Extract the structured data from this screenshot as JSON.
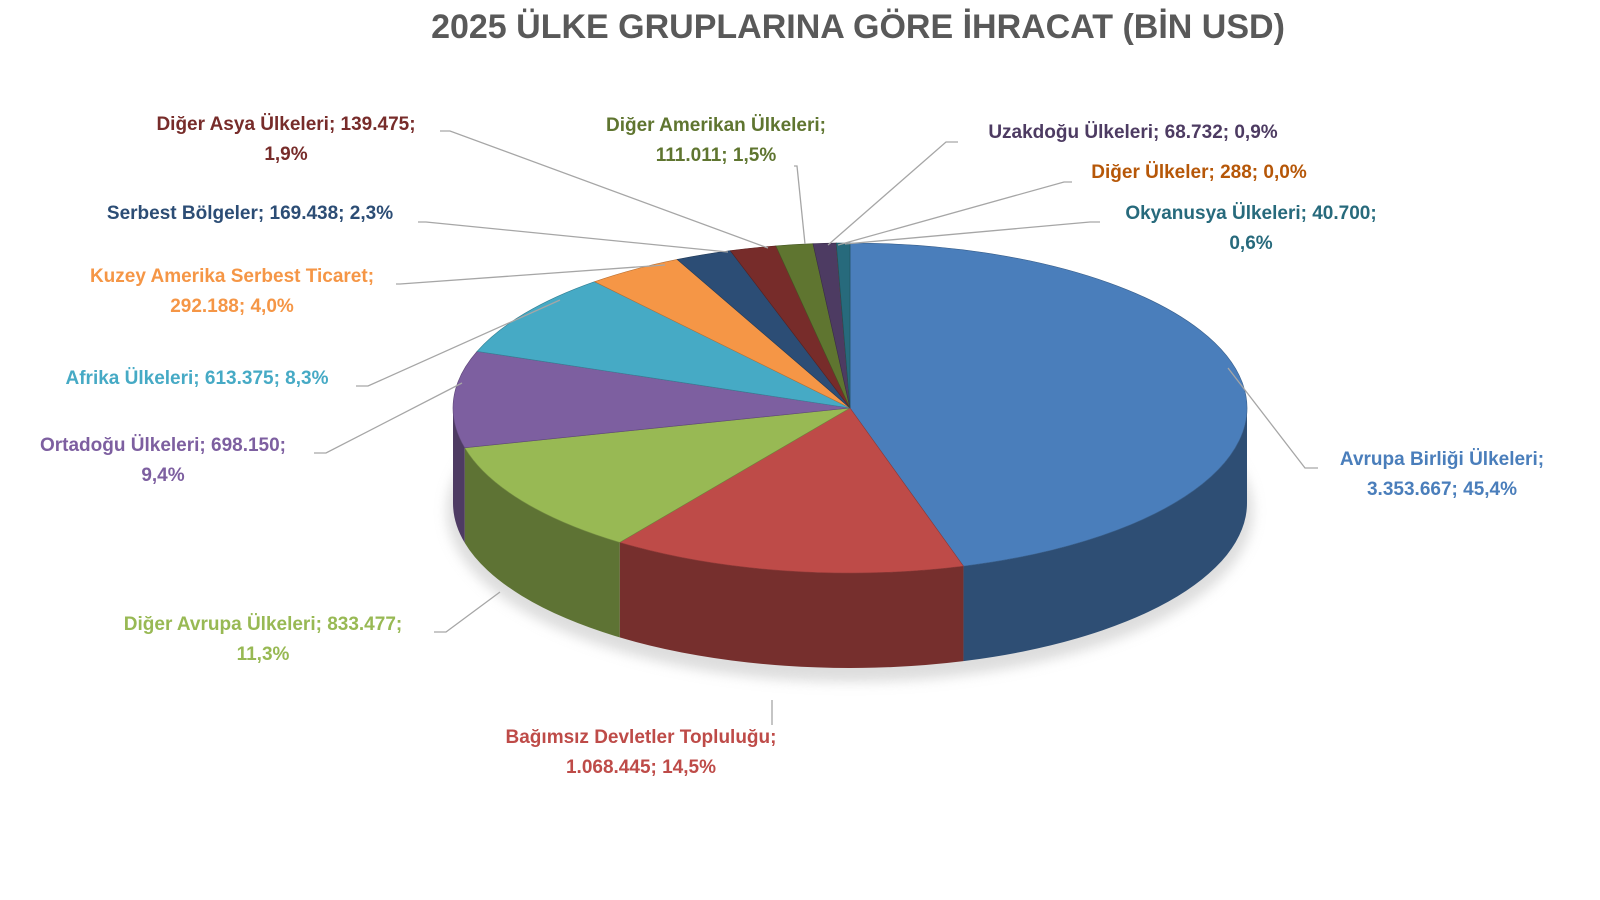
{
  "chart_data": {
    "type": "pie",
    "title": "2025 ÜLKE GRUPLARINA GÖRE İHRACAT (BİN USD)",
    "style": "3d-pie",
    "legend": "none",
    "start_angle": "top, clockwise",
    "slices": [
      {
        "name": "Avrupa Birliği Ülkeleri",
        "value": 3353667,
        "percent": 45.4,
        "color": "#4a7ebb",
        "label_color": "#4a7ebb",
        "lines": [
          "Avrupa Birliği Ülkeleri;",
          "3.353.667; 45,4%"
        ]
      },
      {
        "name": "Bağımsız Devletler Topluluğu",
        "value": 1068445,
        "percent": 14.5,
        "color": "#be4b48",
        "label_color": "#be4b48",
        "lines": [
          "Bağımsız Devletler Topluluğu;",
          "1.068.445; 14,5%"
        ]
      },
      {
        "name": "Diğer Avrupa Ülkeleri",
        "value": 833477,
        "percent": 11.3,
        "color": "#98b954",
        "label_color": "#98b954",
        "lines": [
          "Diğer Avrupa Ülkeleri; 833.477;",
          "11,3%"
        ]
      },
      {
        "name": "Ortadoğu Ülkeleri",
        "value": 698150,
        "percent": 9.4,
        "color": "#7d5fa0",
        "label_color": "#7d5fa0",
        "lines": [
          "Ortadoğu Ülkeleri; 698.150;",
          "9,4%"
        ]
      },
      {
        "name": "Afrika Ülkeleri",
        "value": 613375,
        "percent": 8.3,
        "color": "#46aac5",
        "label_color": "#46aac5",
        "lines": [
          "Afrika Ülkeleri; 613.375; 8,3%"
        ]
      },
      {
        "name": "Kuzey Amerika Serbest Ticaret",
        "value": 292188,
        "percent": 4.0,
        "color": "#f59646",
        "label_color": "#f59646",
        "lines": [
          "Kuzey Amerika Serbest Ticaret;",
          "292.188; 4,0%"
        ]
      },
      {
        "name": "Serbest Bölgeler",
        "value": 169438,
        "percent": 2.3,
        "color": "#2c4d75",
        "label_color": "#2c4d75",
        "lines": [
          "Serbest Bölgeler; 169.438; 2,3%"
        ]
      },
      {
        "name": "Diğer Asya Ülkeleri",
        "value": 139475,
        "percent": 1.9,
        "color": "#772c2a",
        "label_color": "#772c2a",
        "lines": [
          "Diğer Asya Ülkeleri; 139.475;",
          "1,9%"
        ]
      },
      {
        "name": "Diğer Amerikan Ülkeleri",
        "value": 111011,
        "percent": 1.5,
        "color": "#5f7530",
        "label_color": "#5f7530",
        "lines": [
          "Diğer Amerikan Ülkeleri;",
          "111.011; 1,5%"
        ]
      },
      {
        "name": "Uzakdoğu Ülkeleri",
        "value": 68732,
        "percent": 0.9,
        "color": "#4d3b62",
        "label_color": "#4d3b62",
        "lines": [
          "Uzakdoğu Ülkeleri; 68.732; 0,9%"
        ]
      },
      {
        "name": "Diğer Ülkeler",
        "value": 288,
        "percent": 0.0,
        "color": "#b65708",
        "label_color": "#b65708",
        "lines": [
          "Diğer Ülkeler; 288; 0,0%"
        ]
      },
      {
        "name": "Okyanusya Ülkeleri",
        "value": 40700,
        "percent": 0.6,
        "color": "#276a7c",
        "label_color": "#276a7c",
        "lines": [
          "Okyanusya Ülkeleri; 40.700;",
          "0,6%"
        ]
      }
    ]
  }
}
